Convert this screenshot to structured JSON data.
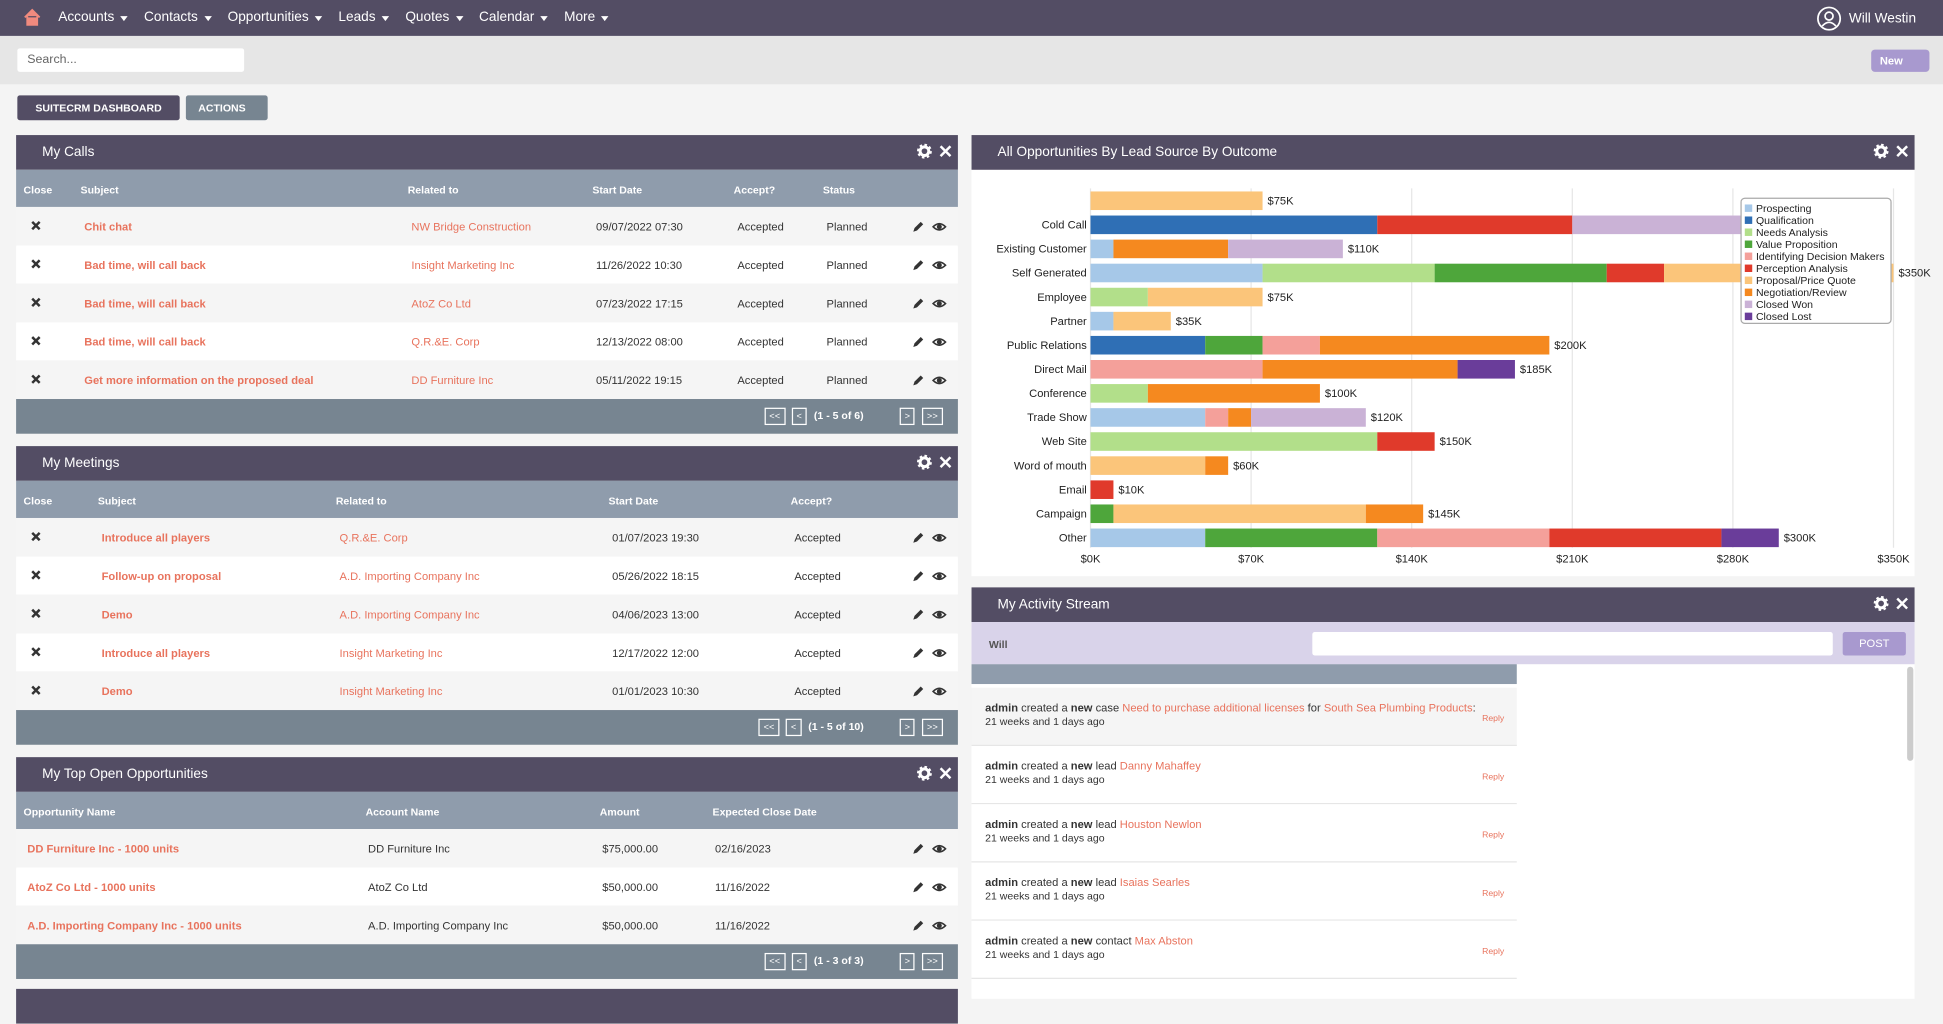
{
  "nav": {
    "items": [
      "Accounts",
      "Contacts",
      "Opportunities",
      "Leads",
      "Quotes",
      "Calendar",
      "More"
    ],
    "user": "Will Westin"
  },
  "search": {
    "placeholder": "Search...",
    "new_button": "New"
  },
  "dashboard": {
    "tab": "SUITECRM DASHBOARD",
    "actions": "ACTIONS"
  },
  "my_calls": {
    "title": "My Calls",
    "columns": [
      "Close",
      "Subject",
      "Related to",
      "Start Date",
      "Accept?",
      "Status"
    ],
    "rows": [
      [
        "Chit chat",
        "NW Bridge Construction",
        "09/07/2022 07:30",
        "Accepted",
        "Planned"
      ],
      [
        "Bad time, will call back",
        "Insight Marketing Inc",
        "11/26/2022 10:30",
        "Accepted",
        "Planned"
      ],
      [
        "Bad time, will call back",
        "AtoZ Co Ltd",
        "07/23/2022 17:15",
        "Accepted",
        "Planned"
      ],
      [
        "Bad time, will call back",
        "Q.R.&E. Corp",
        "12/13/2022 08:00",
        "Accepted",
        "Planned"
      ],
      [
        "Get more information on the proposed deal",
        "DD Furniture Inc",
        "05/11/2022 19:15",
        "Accepted",
        "Planned"
      ]
    ],
    "pager": {
      "first": "<<",
      "prev": "<",
      "info": "(1 - 5 of 6)",
      "next": ">",
      "last": ">>"
    }
  },
  "my_meetings": {
    "title": "My Meetings",
    "columns": [
      "Close",
      "Subject",
      "Related to",
      "Start Date",
      "Accept?"
    ],
    "rows": [
      [
        "Introduce all players",
        "Q.R.&E. Corp",
        "01/07/2023 19:30",
        "Accepted"
      ],
      [
        "Follow-up on proposal",
        "A.D. Importing Company Inc",
        "05/26/2022 18:15",
        "Accepted"
      ],
      [
        "Demo",
        "A.D. Importing Company Inc",
        "04/06/2023 13:00",
        "Accepted"
      ],
      [
        "Introduce all players",
        "Insight Marketing Inc",
        "12/17/2022 12:00",
        "Accepted"
      ],
      [
        "Demo",
        "Insight Marketing Inc",
        "01/01/2023 10:30",
        "Accepted"
      ]
    ],
    "pager": {
      "first": "<<",
      "prev": "<",
      "info": "(1 - 5 of 10)",
      "next": ">",
      "last": ">>"
    }
  },
  "my_opportunities": {
    "title": "My Top Open Opportunities",
    "columns": [
      "Opportunity Name",
      "Account Name",
      "Amount",
      "Expected Close Date"
    ],
    "rows": [
      [
        "DD Furniture Inc - 1000 units",
        "DD Furniture Inc",
        "$75,000.00",
        "02/16/2023"
      ],
      [
        "AtoZ Co Ltd - 1000 units",
        "AtoZ Co Ltd",
        "$50,000.00",
        "11/16/2022"
      ],
      [
        "A.D. Importing Company Inc - 1000 units",
        "A.D. Importing Company Inc",
        "$50,000.00",
        "11/16/2022"
      ]
    ],
    "pager": {
      "first": "<<",
      "prev": "<",
      "info": "(1 - 3 of 3)",
      "next": ">",
      "last": ">>"
    }
  },
  "chart_dashlet": {
    "title": "All Opportunities By Lead Source By Outcome"
  },
  "chart_data": {
    "type": "bar",
    "orientation": "horizontal",
    "stacked": true,
    "categories": [
      null,
      "Cold Call",
      "Existing Customer",
      "Self Generated",
      "Employee",
      "Partner",
      "Public Relations",
      "Direct Mail",
      "Conference",
      "Trade Show",
      "Web Site",
      "Word of mouth",
      "Email",
      "Campaign",
      "Other"
    ],
    "total_labels": [
      "$75K",
      null,
      "$110K",
      "$350K",
      "$75K",
      "$35K",
      "$200K",
      "$185K",
      "$100K",
      "$120K",
      "$150K",
      "$60K",
      "$10K",
      "$145K",
      "$300K"
    ],
    "xlim": [
      0,
      350000
    ],
    "xticks": [
      {
        "value": 0,
        "label": "$0K"
      },
      {
        "value": 70000,
        "label": "$70K"
      },
      {
        "value": 140000,
        "label": "$140K"
      },
      {
        "value": 210000,
        "label": "$210K"
      },
      {
        "value": 280000,
        "label": "$280K"
      },
      {
        "value": 350000,
        "label": "$350K"
      }
    ],
    "grid": true,
    "legend": "upper right",
    "series": [
      {
        "name": "Prospecting",
        "color": "#a6c8e8",
        "values": [
          null,
          null,
          10000,
          75000,
          null,
          10000,
          null,
          null,
          null,
          50000,
          null,
          null,
          null,
          null,
          50000
        ]
      },
      {
        "name": "Qualification",
        "color": "#2f6fb5",
        "values": [
          null,
          125000,
          null,
          null,
          null,
          null,
          50000,
          null,
          null,
          null,
          null,
          null,
          null,
          null,
          null
        ]
      },
      {
        "name": "Needs Analysis",
        "color": "#b2df8a",
        "values": [
          null,
          null,
          null,
          75000,
          25000,
          null,
          null,
          null,
          25000,
          null,
          125000,
          null,
          null,
          null,
          null
        ]
      },
      {
        "name": "Value Proposition",
        "color": "#4ea63b",
        "values": [
          null,
          null,
          null,
          75000,
          null,
          null,
          25000,
          null,
          null,
          null,
          null,
          null,
          null,
          10000,
          75000
        ]
      },
      {
        "name": "Identifying Decision Makers",
        "color": "#f4a09a",
        "values": [
          null,
          null,
          null,
          null,
          null,
          null,
          25000,
          75000,
          null,
          10000,
          null,
          null,
          null,
          null,
          75000
        ]
      },
      {
        "name": "Perception Analysis",
        "color": "#e03a2b",
        "values": [
          null,
          85000,
          null,
          25000,
          null,
          null,
          null,
          null,
          null,
          null,
          25000,
          null,
          10000,
          null,
          75000
        ]
      },
      {
        "name": "Proposal/Price Quote",
        "color": "#fbc57a",
        "values": [
          75000,
          null,
          null,
          100000,
          50000,
          25000,
          null,
          null,
          null,
          null,
          null,
          50000,
          null,
          110000,
          null
        ]
      },
      {
        "name": "Negotiation/Review",
        "color": "#f5891f",
        "values": [
          null,
          null,
          50000,
          null,
          null,
          null,
          100000,
          85000,
          75000,
          10000,
          null,
          10000,
          null,
          25000,
          null
        ]
      },
      {
        "name": "Closed Won",
        "color": "#cab2d6",
        "values": [
          null,
          75000,
          50000,
          null,
          null,
          null,
          null,
          null,
          null,
          50000,
          null,
          null,
          null,
          null,
          null
        ]
      },
      {
        "name": "Closed Lost",
        "color": "#6a3d9a",
        "values": [
          null,
          null,
          null,
          null,
          null,
          null,
          null,
          25000,
          null,
          null,
          null,
          null,
          null,
          null,
          25000
        ]
      }
    ]
  },
  "activity": {
    "title": "My Activity Stream",
    "user": "Will",
    "post": "POST",
    "entries": [
      {
        "user": "admin",
        "action": "created a",
        "new": "new",
        "object": "case",
        "link": "Need to purchase additional licenses",
        "for": "for",
        "target": "South Sea Plumbing Products",
        "end": ":",
        "time": "21 weeks and 1 days ago",
        "reply": "Reply"
      },
      {
        "user": "admin",
        "action": "created a",
        "new": "new",
        "object": "lead",
        "link": "Danny Mahaffey",
        "time": "21 weeks and 1 days ago",
        "reply": "Reply"
      },
      {
        "user": "admin",
        "action": "created a",
        "new": "new",
        "object": "lead",
        "link": "Houston Newlon",
        "time": "21 weeks and 1 days ago",
        "reply": "Reply"
      },
      {
        "user": "admin",
        "action": "created a",
        "new": "new",
        "object": "lead",
        "link": "Isaias Searles",
        "time": "21 weeks and 1 days ago",
        "reply": "Reply"
      },
      {
        "user": "admin",
        "action": "created a",
        "new": "new",
        "object": "contact",
        "link": "Max Abston",
        "time": "21 weeks and 1 days ago",
        "reply": "Reply"
      }
    ]
  }
}
